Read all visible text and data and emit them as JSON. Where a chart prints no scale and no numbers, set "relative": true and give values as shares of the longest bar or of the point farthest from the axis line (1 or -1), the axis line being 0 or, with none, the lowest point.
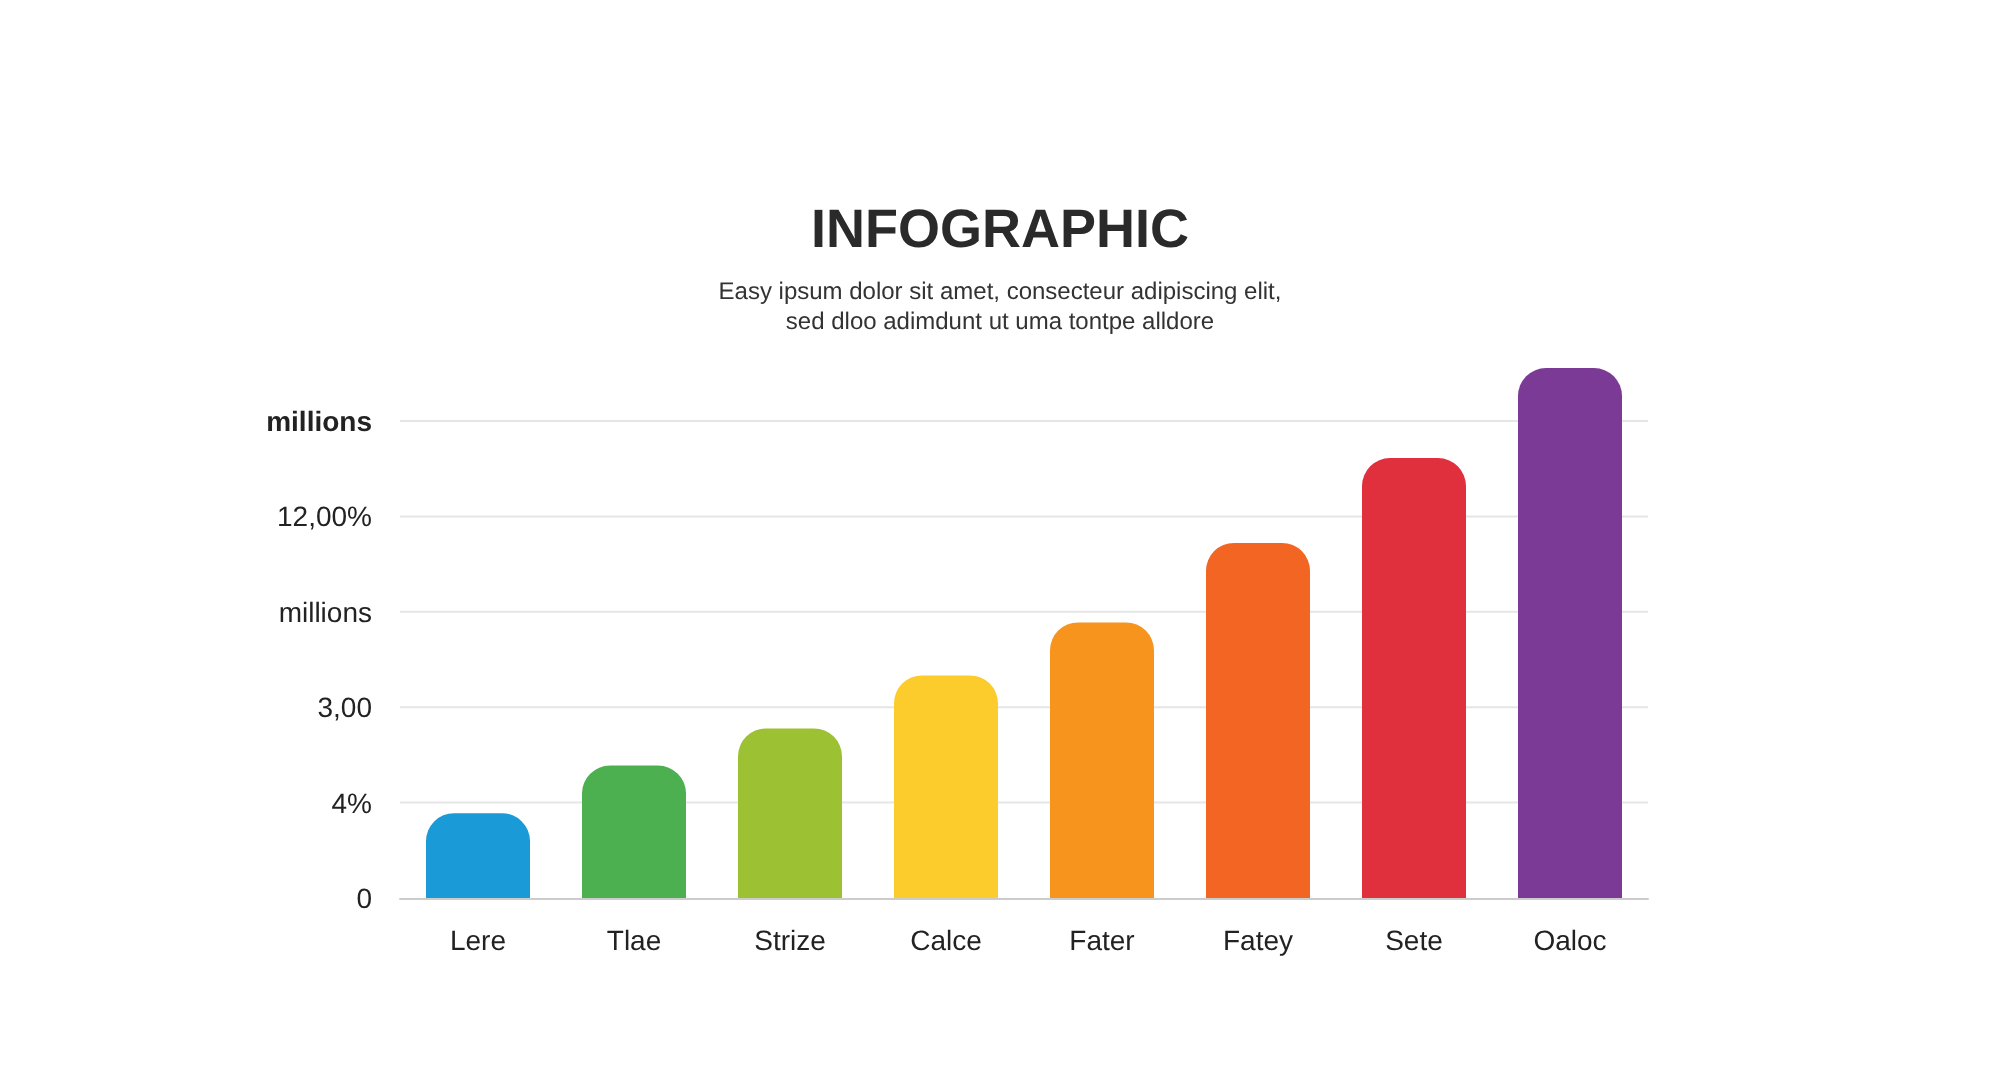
{
  "chart_data": {
    "type": "bar",
    "title": "INFOGRAPHIC",
    "subtitle": "Easy ipsum dolor sit amet, consecteur adipiscing elit,\nsed dloo adimdunt ut uma tontpe alldore",
    "categories": [
      "Lere",
      "Tlae",
      "Strize",
      "Calce",
      "Fater",
      "Fatey",
      "Sete",
      "Oaloc"
    ],
    "values": [
      0.16,
      0.25,
      0.32,
      0.42,
      0.52,
      0.67,
      0.83,
      1
    ],
    "colors": [
      "#1a9ad6",
      "#4caf50",
      "#9cc233",
      "#fccb2c",
      "#f7941d",
      "#f26522",
      "#e0303e",
      "#7b3a96"
    ],
    "relative": true,
    "annotations": [
      "millions",
      "12,00%",
      "millions",
      "3,00",
      "4%",
      "0"
    ],
    "grid": "y"
  }
}
